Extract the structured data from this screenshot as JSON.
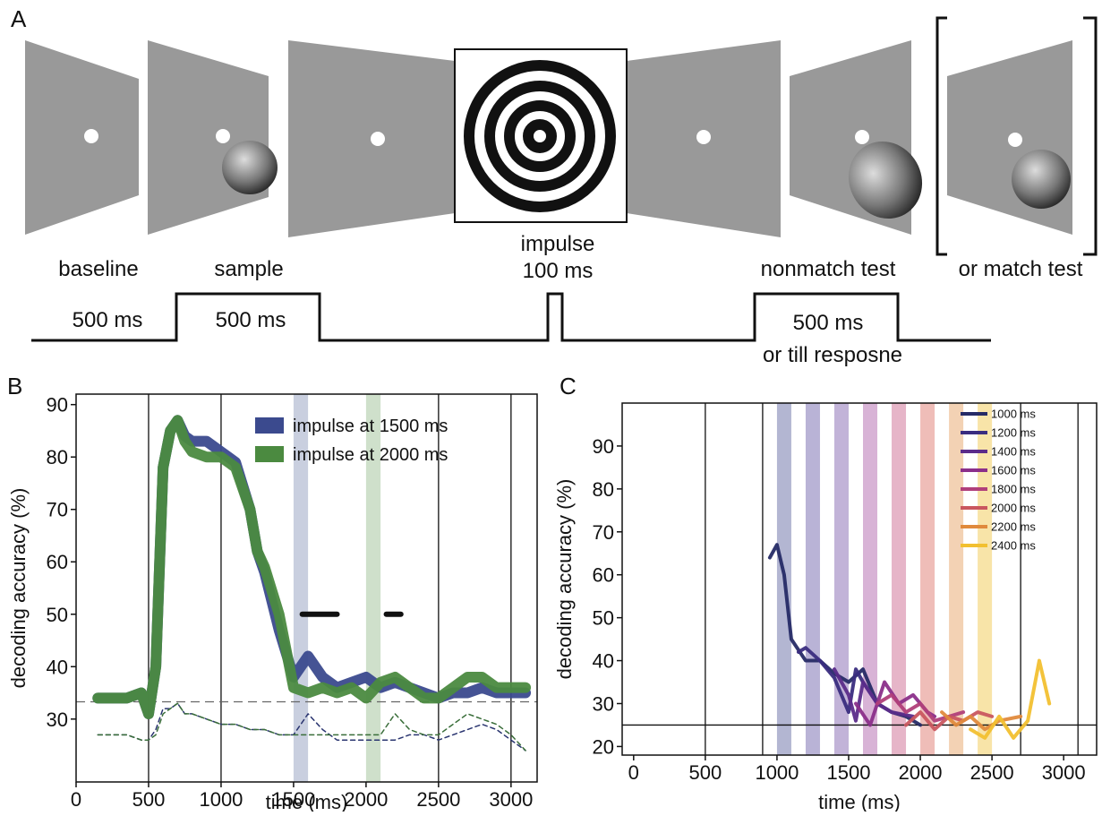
{
  "panel_labels": [
    "A",
    "B",
    "C"
  ],
  "panel_a": {
    "frame_labels": [
      "baseline",
      "sample",
      "impulse",
      "100 ms",
      "nonmatch test",
      "or match test"
    ],
    "timeline_labels": [
      "500 ms",
      "500 ms",
      "500 ms",
      "or till resposne"
    ]
  },
  "chart_data": [
    {
      "type": "line",
      "xlabel": "time (ms)",
      "ylabel": "decoding accuracy (%)",
      "xlim": [
        0,
        3180
      ],
      "ylim": [
        18,
        92
      ],
      "xticks": [
        0,
        500,
        1000,
        1500,
        2000,
        2500,
        3000
      ],
      "yticks": [
        30,
        40,
        50,
        60,
        70,
        80,
        90
      ],
      "vlines": [
        500,
        1000,
        2500,
        3000
      ],
      "hline": 33.3,
      "highlights": [
        {
          "x": [
            1500,
            1600
          ],
          "color": "#c9cfdf"
        },
        {
          "x": [
            2000,
            2100
          ],
          "color": "#cfe0cb"
        }
      ],
      "sig_bars": [
        {
          "x": [
            1560,
            1800
          ],
          "y": 50
        },
        {
          "x": [
            2140,
            2240
          ],
          "y": 50
        }
      ],
      "x": [
        150,
        250,
        350,
        450,
        500,
        550,
        600,
        650,
        700,
        750,
        800,
        900,
        1000,
        1100,
        1200,
        1250,
        1300,
        1400,
        1500,
        1600,
        1700,
        1800,
        1900,
        2000,
        2100,
        2200,
        2300,
        2400,
        2500,
        2600,
        2700,
        2800,
        2900,
        3000,
        3100
      ],
      "series": [
        {
          "name": "impulse at 1500 ms",
          "color": "#3b4a8e",
          "values": [
            34,
            34,
            34,
            35,
            31,
            40,
            78,
            85,
            87,
            84,
            83,
            83,
            81,
            79,
            70,
            62,
            58,
            47,
            38,
            42,
            38,
            36,
            37,
            38,
            36,
            37,
            36,
            35,
            34,
            35,
            35,
            36,
            35,
            35,
            35
          ]
        },
        {
          "name": "impulse at 2000 ms",
          "color": "#4b8a40",
          "values": [
            34,
            34,
            34,
            35,
            31,
            40,
            78,
            85,
            87,
            83,
            81,
            80,
            80,
            78,
            70,
            62,
            59,
            50,
            36,
            35,
            36,
            35,
            36,
            34,
            37,
            38,
            36,
            34,
            34,
            36,
            38,
            38,
            36,
            36,
            36
          ]
        },
        {
          "color": "#2a3570",
          "dashed": true,
          "values": [
            27,
            27,
            27,
            26,
            26,
            28,
            32,
            32,
            33,
            31,
            31,
            30,
            29,
            29,
            28,
            28,
            28,
            27,
            27,
            31,
            28,
            26,
            26,
            26,
            26,
            26,
            27,
            27,
            26,
            27,
            28,
            29,
            28,
            26,
            24
          ]
        },
        {
          "color": "#3a6e3a",
          "dashed": true,
          "values": [
            27,
            27,
            27,
            26,
            26,
            27,
            31,
            32,
            33,
            31,
            31,
            30,
            29,
            29,
            28,
            28,
            28,
            27,
            27,
            27,
            27,
            27,
            27,
            27,
            27,
            31,
            28,
            27,
            27,
            29,
            31,
            30,
            29,
            27,
            24
          ]
        }
      ]
    },
    {
      "type": "line",
      "xlabel": "time (ms)",
      "ylabel": "decoding accuracy (%)",
      "xlim": [
        -80,
        3230
      ],
      "ylim": [
        18,
        100
      ],
      "xticks": [
        0,
        500,
        1000,
        1500,
        2000,
        2500,
        3000
      ],
      "yticks": [
        20,
        30,
        40,
        50,
        60,
        70,
        80,
        90
      ],
      "vlines": [
        500,
        900,
        2700,
        3100
      ],
      "hline": 25,
      "highlights": [
        {
          "x": [
            1000,
            1100
          ],
          "color": "#b3b6d2"
        },
        {
          "x": [
            1200,
            1300
          ],
          "color": "#b9b3d6"
        },
        {
          "x": [
            1400,
            1500
          ],
          "color": "#c2b3d8"
        },
        {
          "x": [
            1600,
            1700
          ],
          "color": "#d8b3d6"
        },
        {
          "x": [
            1800,
            1900
          ],
          "color": "#e6b5c8"
        },
        {
          "x": [
            2000,
            2100
          ],
          "color": "#efbdb8"
        },
        {
          "x": [
            2200,
            2300
          ],
          "color": "#f3d2b4"
        },
        {
          "x": [
            2400,
            2500
          ],
          "color": "#f8e4a8"
        }
      ],
      "series": [
        {
          "name": "1000 ms",
          "color": "#262b66",
          "x": [
            950,
            1000,
            1050,
            1100,
            1200,
            1300,
            1400,
            1500,
            1600,
            1700,
            1800,
            1900,
            2000
          ],
          "values": [
            64,
            67,
            60,
            45,
            40,
            40,
            37,
            35,
            38,
            30,
            28,
            27,
            25
          ]
        },
        {
          "name": "1200 ms",
          "color": "#3a2d80",
          "x": [
            1150,
            1200,
            1300,
            1400,
            1500,
            1550,
            1600,
            1700,
            1800
          ],
          "values": [
            42,
            43,
            40,
            36,
            28,
            38,
            35,
            30,
            28
          ]
        },
        {
          "name": "1400 ms",
          "color": "#5b2c8a",
          "x": [
            1400,
            1500,
            1550,
            1600,
            1700,
            1800,
            1950
          ],
          "values": [
            38,
            32,
            26,
            35,
            30,
            28,
            27
          ]
        },
        {
          "name": "1600 ms",
          "color": "#8b2f8a",
          "x": [
            1550,
            1650,
            1750,
            1850,
            1950,
            2050,
            2100
          ],
          "values": [
            30,
            25,
            35,
            30,
            32,
            28,
            27
          ]
        },
        {
          "name": "1800 ms",
          "color": "#b03f7a",
          "x": [
            1700,
            1800,
            1900,
            2000,
            2100,
            2200,
            2300
          ],
          "values": [
            30,
            32,
            28,
            30,
            26,
            27,
            28
          ]
        },
        {
          "name": "2000 ms",
          "color": "#c9575f",
          "x": [
            1900,
            2000,
            2100,
            2200,
            2300,
            2400,
            2500
          ],
          "values": [
            25,
            28,
            24,
            27,
            26,
            28,
            27
          ]
        },
        {
          "name": "2200 ms",
          "color": "#e08a3c",
          "x": [
            2150,
            2250,
            2350,
            2450,
            2550,
            2700
          ],
          "values": [
            28,
            25,
            27,
            24,
            26,
            27
          ]
        },
        {
          "name": "2400 ms",
          "color": "#f2c030",
          "x": [
            2350,
            2450,
            2550,
            2650,
            2750,
            2830,
            2900
          ],
          "values": [
            24,
            22,
            27,
            22,
            26,
            40,
            30
          ]
        }
      ]
    }
  ]
}
